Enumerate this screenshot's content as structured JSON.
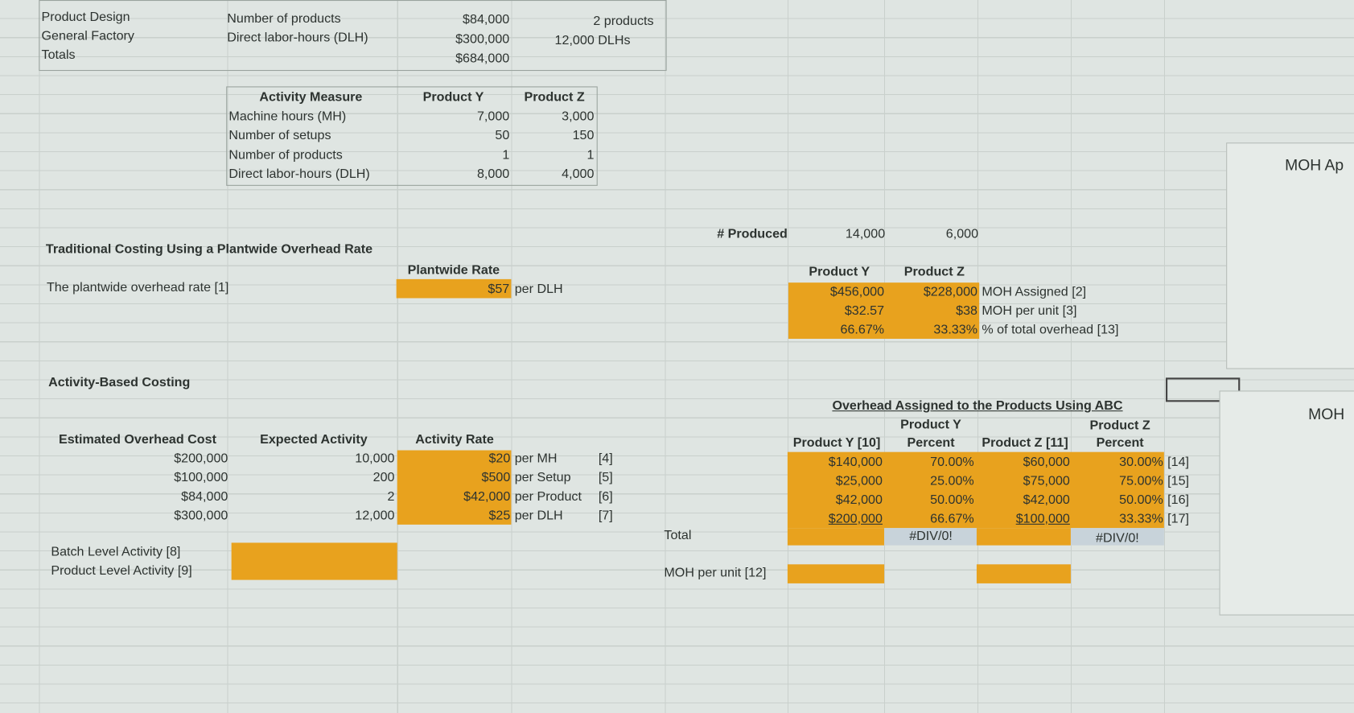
{
  "top": {
    "rows": [
      [
        "Product Design",
        "Number of products",
        "$84,000",
        "2 products"
      ],
      [
        "General Factory",
        "Direct labor-hours (DLH)",
        "$300,000",
        "12,000 DLHs"
      ],
      [
        "Totals",
        "$684,000"
      ]
    ]
  },
  "activity_table": {
    "header": [
      "Activity Measure",
      "Product Y",
      "Product Z"
    ],
    "rows": [
      [
        "Machine hours (MH)",
        "7,000",
        "3,000"
      ],
      [
        "Number of setups",
        "50",
        "150"
      ],
      [
        "Number of products",
        "1",
        "1"
      ],
      [
        "Direct labor-hours (DLH)",
        "8,000",
        "4,000"
      ]
    ]
  },
  "traditional": {
    "title": "Traditional Costing Using a Plantwide Overhead Rate",
    "rate_label": "The plantwide overhead rate [1]",
    "rate_header": "Plantwide Rate",
    "rate_value": "$57",
    "rate_unit": "per DLH"
  },
  "produced": {
    "label": "# Produced",
    "values": [
      "14,000",
      "6,000"
    ]
  },
  "moh": {
    "headers": [
      "Product Y",
      "Product Z"
    ],
    "rows": [
      [
        "$456,000",
        "$228,000",
        "MOH Assigned [2]"
      ],
      [
        "$32.57",
        "$38",
        "MOH per unit [3]"
      ],
      [
        "66.67%",
        "33.33%",
        "% of total overhead [13]"
      ]
    ]
  },
  "abc": {
    "title": "Activity-Based Costing",
    "headers": [
      "Estimated Overhead Cost",
      "Expected Activity",
      "Activity Rate"
    ],
    "rows": [
      [
        "$200,000",
        "10,000",
        "$20",
        "per MH",
        "[4]"
      ],
      [
        "$100,000",
        "200",
        "$500",
        "per Setup",
        "[5]"
      ],
      [
        "$84,000",
        "2",
        "$42,000",
        "per Product",
        "[6]"
      ],
      [
        "$300,000",
        "12,000",
        "$25",
        "per DLH",
        "[7]"
      ]
    ],
    "levels": [
      "Batch Level Activity [8]",
      "Product Level Activity [9]"
    ]
  },
  "assigned": {
    "title": "Overhead Assigned to the Products Using ABC",
    "top_headers": [
      "Product Y",
      "Product Z"
    ],
    "headers": [
      "Product Y [10]",
      "Percent",
      "Product Z [11]",
      "Percent"
    ],
    "rows": [
      [
        "$140,000",
        "70.00%",
        "$60,000",
        "30.00%",
        "[14]"
      ],
      [
        "$25,000",
        "25.00%",
        "$75,000",
        "75.00%",
        "[15]"
      ],
      [
        "$42,000",
        "50.00%",
        "$42,000",
        "50.00%",
        "[16]"
      ],
      [
        "$200,000",
        "66.67%",
        "$100,000",
        "33.33%",
        "[17]"
      ]
    ],
    "total_label": "Total",
    "total": [
      "#DIV/0!",
      "#DIV/0!"
    ],
    "per_unit_label": "MOH per unit [12]"
  },
  "side": [
    "MOH Ap",
    "MOH"
  ]
}
